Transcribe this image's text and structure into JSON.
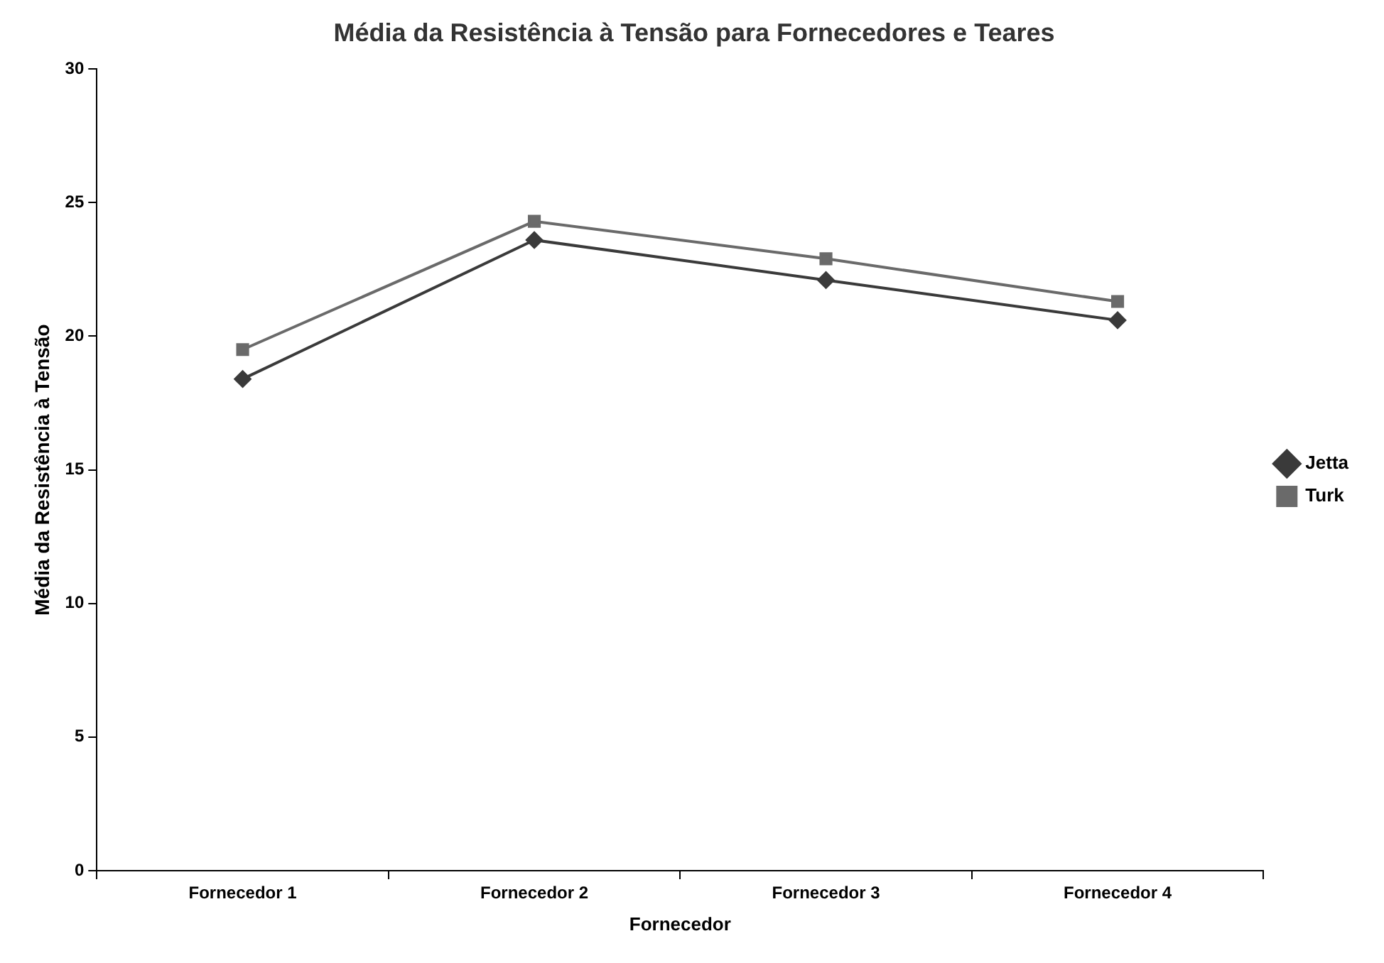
{
  "chart_data": {
    "type": "line",
    "title": "Média da Resistência à Tensão para Fornecedores e Teares",
    "xlabel": "Fornecedor",
    "ylabel": "Média da Resistência à Tensão",
    "categories": [
      "Fornecedor 1",
      "Fornecedor 2",
      "Fornecedor 3",
      "Fornecedor 4"
    ],
    "series": [
      {
        "name": "Jetta",
        "color": "#3a3a3a",
        "marker": "diamond",
        "values": [
          18.4,
          23.6,
          22.1,
          20.6
        ]
      },
      {
        "name": "Turk",
        "color": "#6a6a6a",
        "marker": "square",
        "values": [
          19.5,
          24.3,
          22.9,
          21.3
        ]
      }
    ],
    "ylim": [
      0,
      30
    ],
    "yticks": [
      0,
      5,
      10,
      15,
      20,
      25,
      30
    ],
    "grid": false,
    "legend": "right",
    "line_style": "solid"
  }
}
